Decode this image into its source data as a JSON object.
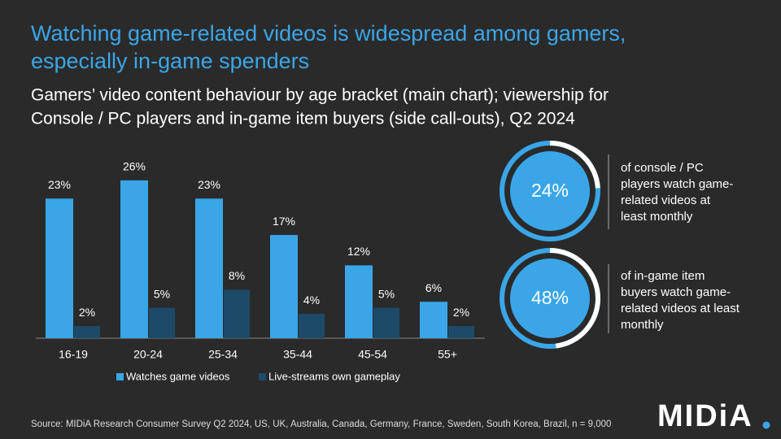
{
  "title": [
    "Watching game-related videos is widespread among gamers,",
    "especially in-game spenders"
  ],
  "subtitle": [
    "Gamers’ video content behaviour by age bracket (main chart); viewership for",
    "Console / PC players and in-game item buyers (side call-outs), Q2 2024"
  ],
  "chart_data": {
    "type": "bar",
    "categories": [
      "16-19",
      "20-24",
      "25-34",
      "35-44",
      "45-54",
      "55+"
    ],
    "series": [
      {
        "name": "Watches game videos",
        "color": "#3aa6e8",
        "values": [
          23,
          26,
          23,
          17,
          12,
          6
        ],
        "value_labels": [
          "23%",
          "26%",
          "23%",
          "17%",
          "12%",
          "6%"
        ]
      },
      {
        "name": "Live-streams own gameplay",
        "color": "#1d4a69",
        "values": [
          2,
          5,
          8,
          4,
          5,
          2
        ],
        "value_labels": [
          "2%",
          "5%",
          "8%",
          "4%",
          "5%",
          "2%"
        ]
      }
    ],
    "ylim": [
      0,
      30
    ]
  },
  "callouts": [
    {
      "value": 24,
      "value_label": "24%",
      "text_lines": [
        "of console / PC",
        "players watch game-",
        "related videos at",
        "least monthly"
      ]
    },
    {
      "value": 48,
      "value_label": "48%",
      "text_lines": [
        "of in-game item",
        "buyers watch game-",
        "related videos at least",
        "monthly"
      ]
    }
  ],
  "source": "Source: MIDiA Research Consumer Survey Q2 2024, US, UK, Australia, Canada, Germany, France, Sweden, South Korea, Brazil, n = 9,000",
  "logo": "MIDiA"
}
